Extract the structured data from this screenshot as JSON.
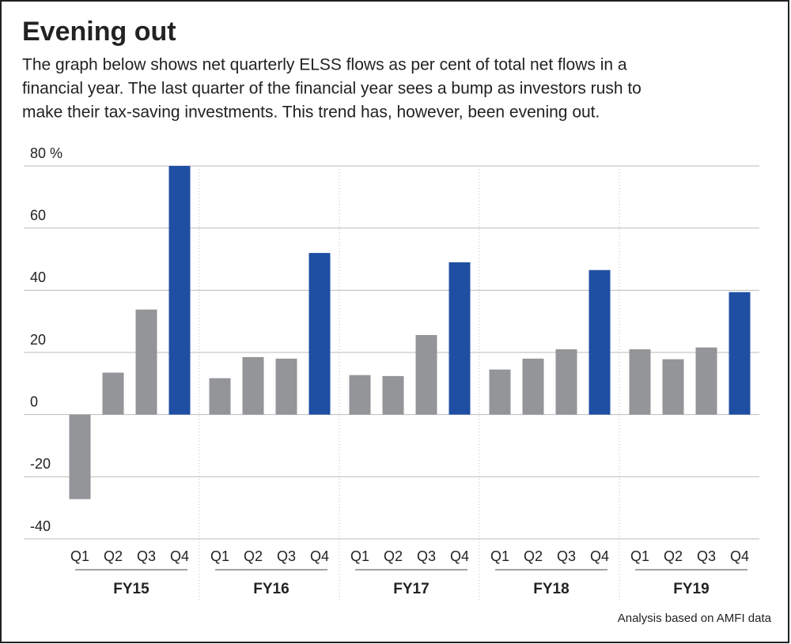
{
  "chart_data": {
    "type": "bar",
    "title": "Evening out",
    "subtitle": [
      "The graph below shows net quarterly ELSS flows as per cent of total net flows in a",
      "financial year. The last quarter of the financial year sees a bump as investors rush to",
      "make their tax-saving investments. This trend has, however, been evening out."
    ],
    "source": "Analysis based on AMFI data",
    "groups": [
      "FY15",
      "FY16",
      "FY17",
      "FY18",
      "FY19"
    ],
    "categories": [
      "Q1",
      "Q2",
      "Q3",
      "Q4",
      "Q1",
      "Q2",
      "Q3",
      "Q4",
      "Q1",
      "Q2",
      "Q3",
      "Q4",
      "Q1",
      "Q2",
      "Q3",
      "Q4",
      "Q1",
      "Q2",
      "Q3",
      "Q4"
    ],
    "values": [
      -27.2,
      13.5,
      33.8,
      80,
      11.7,
      18.5,
      18,
      52,
      12.7,
      12.4,
      25.6,
      49,
      14.5,
      18,
      21,
      46.5,
      21,
      17.8,
      21.6,
      39.4
    ],
    "colors": [
      "#939598",
      "#939598",
      "#939598",
      "#1f4fa3",
      "#939598",
      "#939598",
      "#939598",
      "#1f4fa3",
      "#939598",
      "#939598",
      "#939598",
      "#1f4fa3",
      "#939598",
      "#939598",
      "#939598",
      "#1f4fa3",
      "#939598",
      "#939598",
      "#939598",
      "#1f4fa3"
    ],
    "ylim": [
      -40,
      80
    ],
    "yticks": [
      -40,
      -20,
      0,
      20,
      40,
      60,
      {
        "value": 80,
        "label": "80 %"
      }
    ],
    "grid": true
  }
}
